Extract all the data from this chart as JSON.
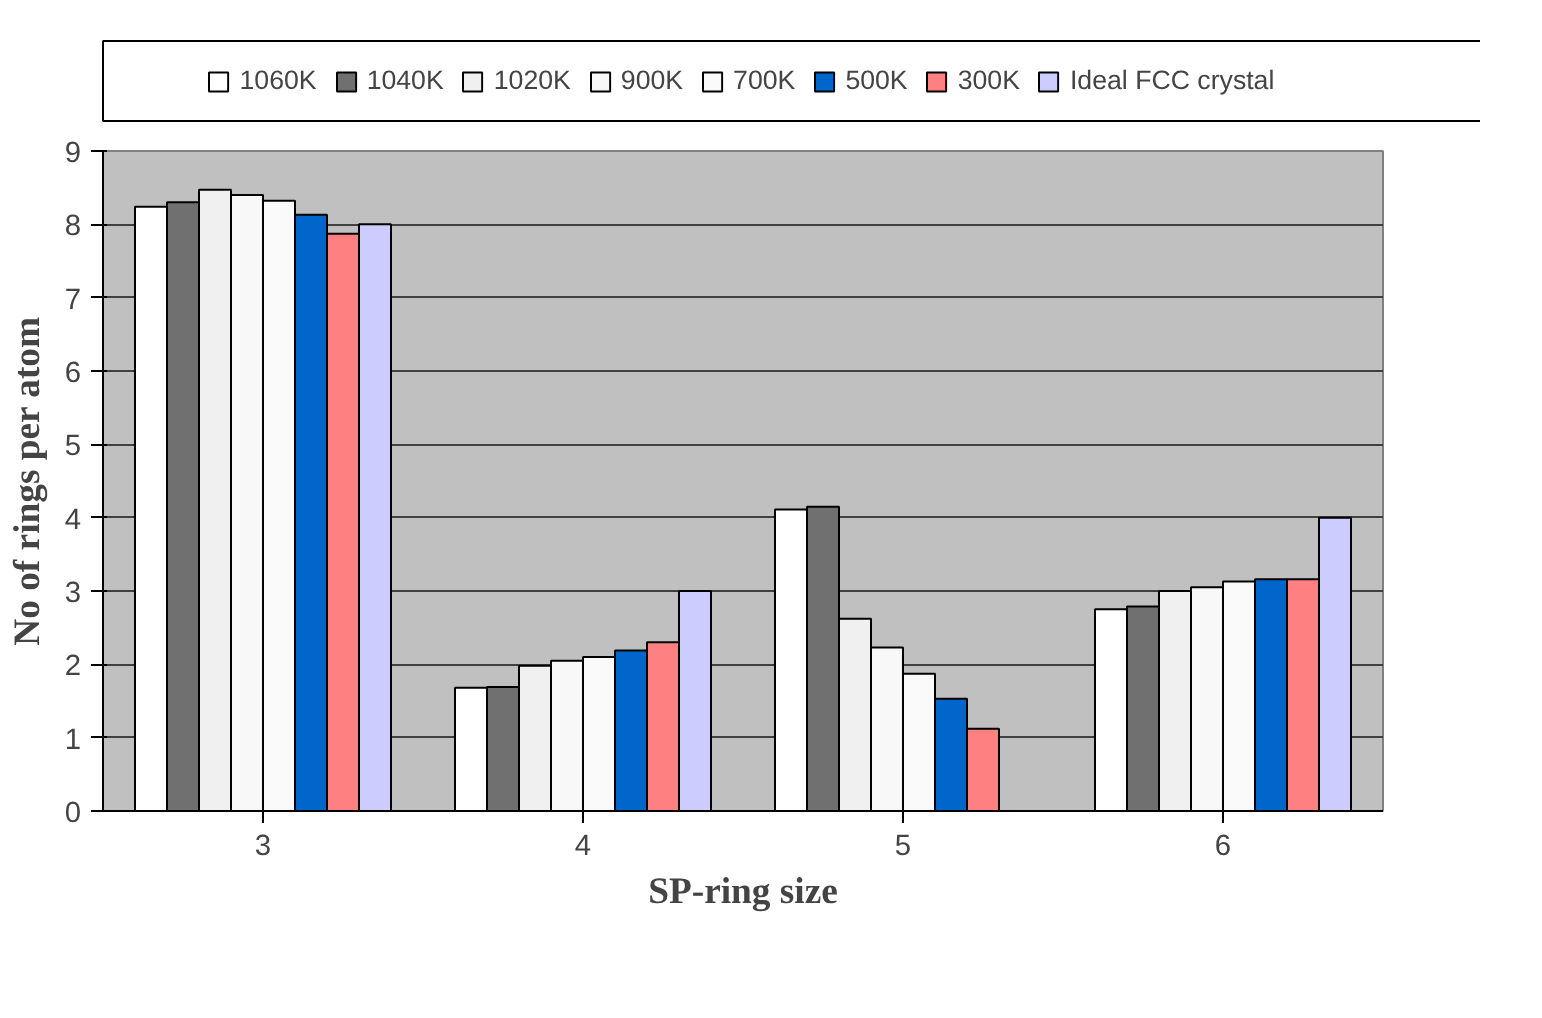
{
  "chart_data": {
    "type": "bar",
    "xlabel": "SP-ring size",
    "ylabel": "No of rings per atom",
    "categories": [
      "3",
      "4",
      "5",
      "6"
    ],
    "ylim": [
      0,
      9
    ],
    "yticks": [
      0,
      1,
      2,
      3,
      4,
      5,
      6,
      7,
      8,
      9
    ],
    "grid": "y",
    "legend": "top",
    "series": [
      {
        "name": "1060K",
        "color": "#ffffff",
        "values": [
          8.24,
          1.68,
          4.11,
          2.75
        ]
      },
      {
        "name": "1040K",
        "color": "#707070",
        "values": [
          8.3,
          1.69,
          4.15,
          2.79
        ]
      },
      {
        "name": "1020K",
        "color": "#f0f0f0",
        "values": [
          8.47,
          1.98,
          2.62,
          3.0
        ]
      },
      {
        "name": "900K",
        "color": "#f8f8f8",
        "values": [
          8.4,
          2.05,
          2.23,
          3.05
        ]
      },
      {
        "name": "700K",
        "color": "#fafafa",
        "values": [
          8.32,
          2.1,
          1.87,
          3.13
        ]
      },
      {
        "name": "500K",
        "color": "#0066cc",
        "values": [
          8.13,
          2.19,
          1.53,
          3.16
        ]
      },
      {
        "name": "300K",
        "color": "#ff8080",
        "values": [
          7.87,
          2.3,
          1.12,
          3.16
        ]
      },
      {
        "name": "Ideal FCC crystal",
        "color": "#ccccff",
        "values": [
          8.0,
          3.0,
          null,
          4.0
        ]
      }
    ]
  }
}
